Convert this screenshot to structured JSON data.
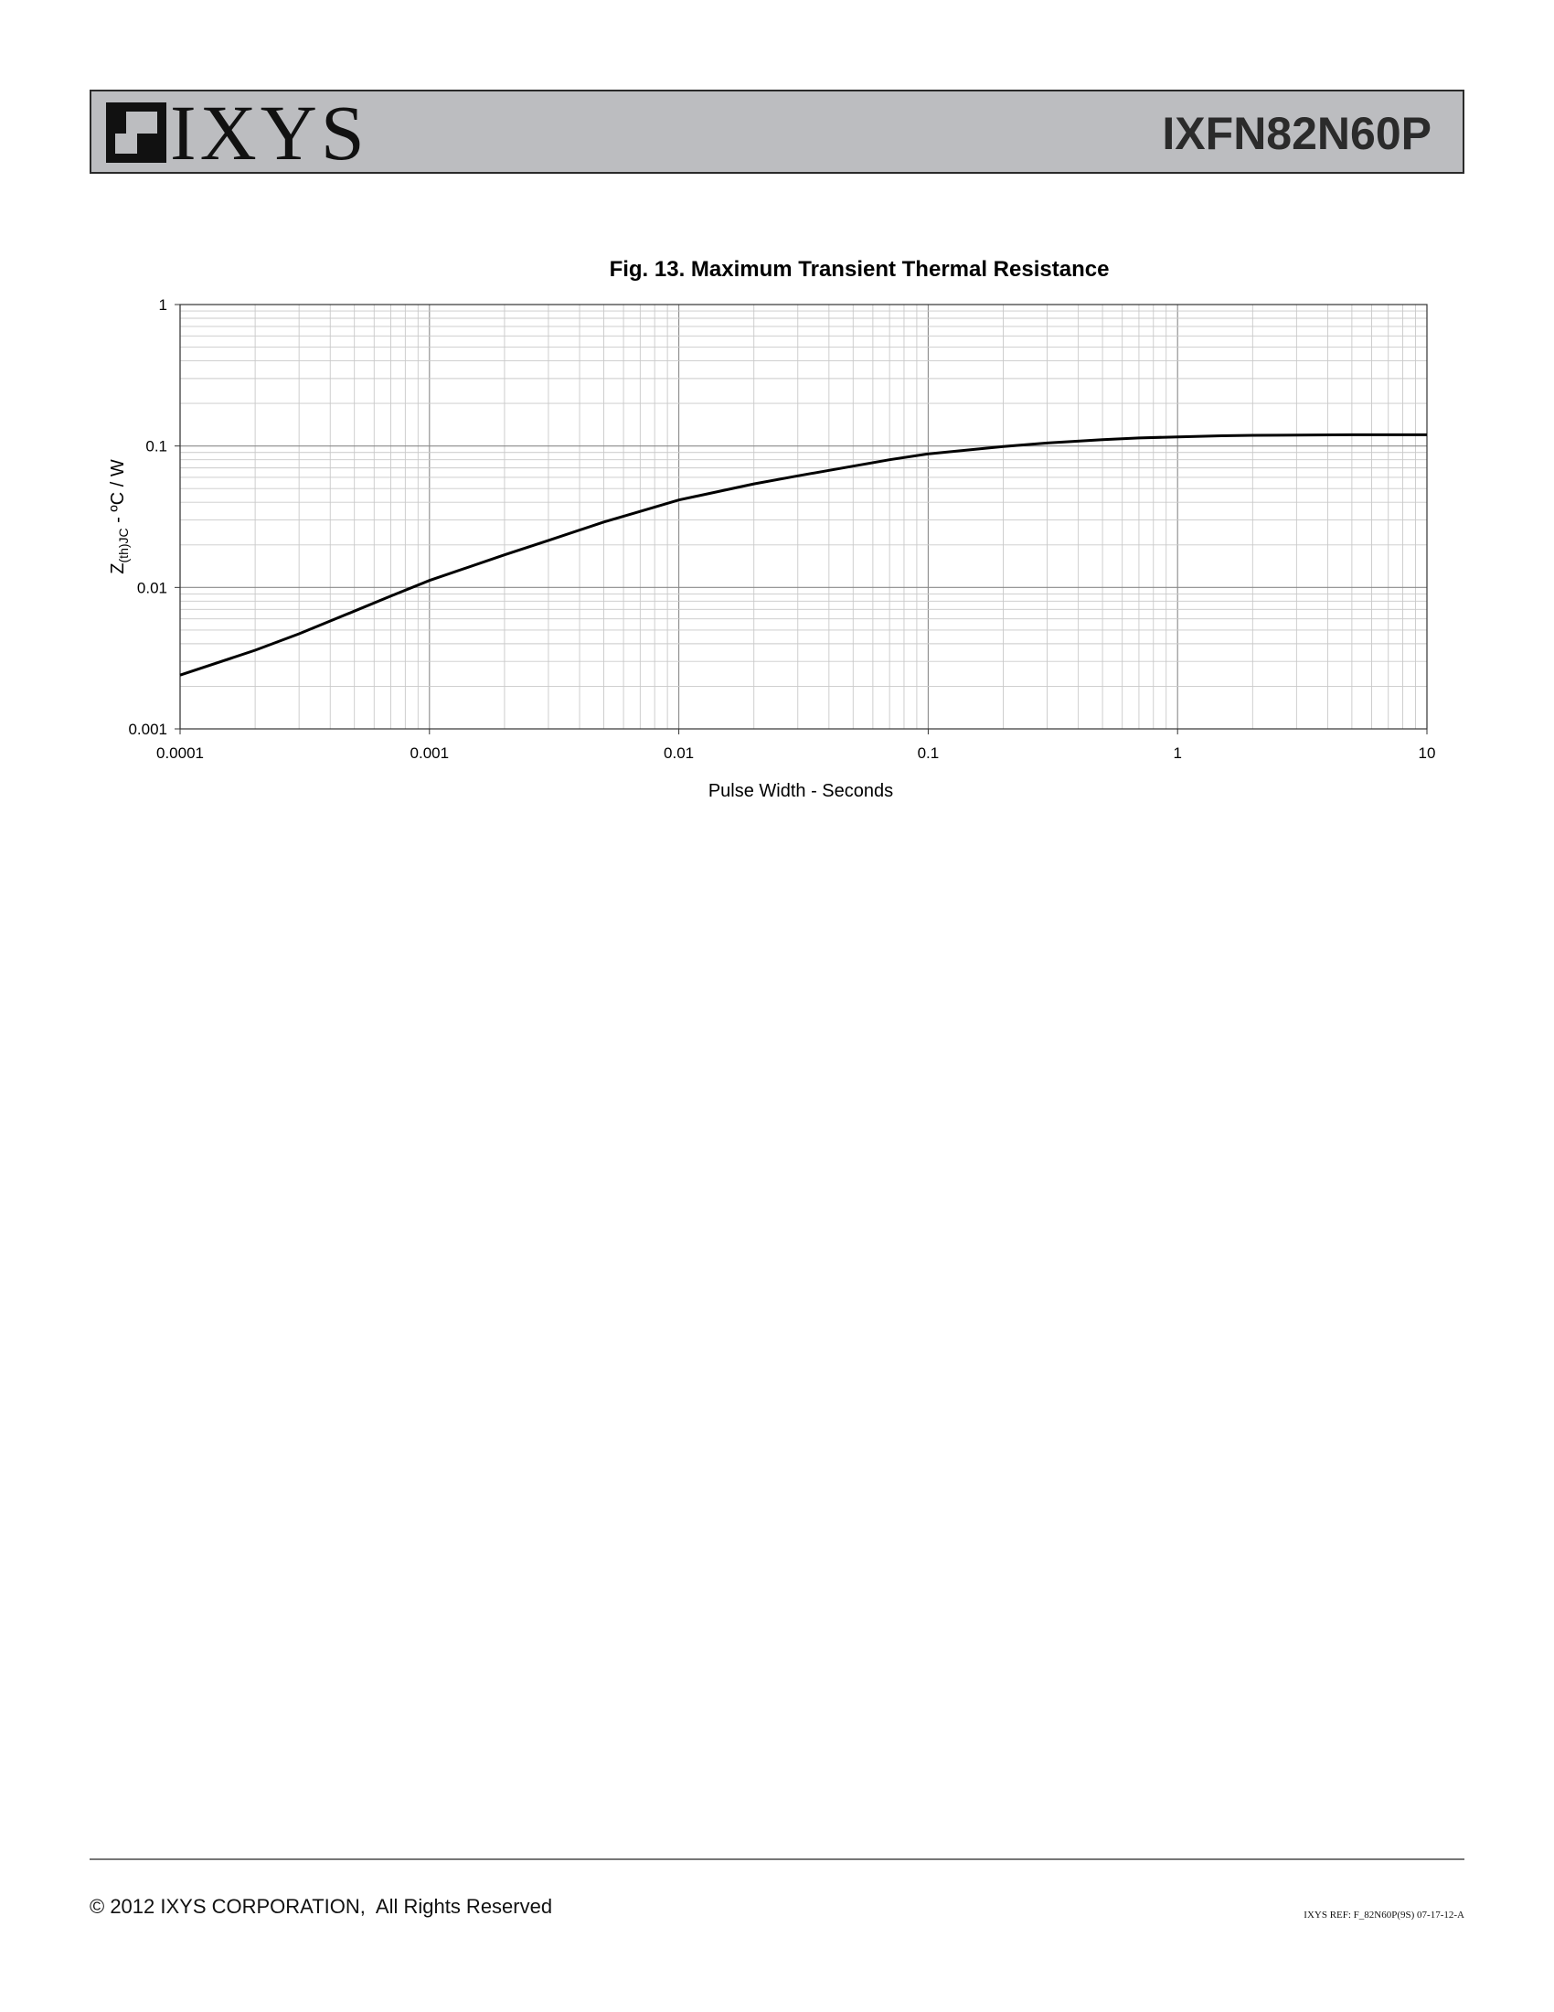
{
  "header": {
    "logo_text": "IXYS",
    "part_number": "IXFN82N60P"
  },
  "chart_data": {
    "type": "line",
    "title": "Fig. 13. Maximum Transient Thermal Resistance",
    "xlabel": "Pulse Width - Seconds",
    "ylabel_main": "Z",
    "ylabel_sub": "(th)JC",
    "ylabel_rest": " - ºC / W",
    "xscale": "log",
    "yscale": "log",
    "xlim": [
      0.0001,
      10
    ],
    "ylim": [
      0.001,
      1
    ],
    "grid": true,
    "x_ticks": [
      {
        "value": 0.0001,
        "label": "0.0001"
      },
      {
        "value": 0.001,
        "label": "0.001"
      },
      {
        "value": 0.01,
        "label": "0.01"
      },
      {
        "value": 0.1,
        "label": "0.1"
      },
      {
        "value": 1,
        "label": "1"
      },
      {
        "value": 10,
        "label": "10"
      }
    ],
    "y_ticks": [
      {
        "value": 0.001,
        "label": "0.001"
      },
      {
        "value": 0.01,
        "label": "0.01"
      },
      {
        "value": 0.1,
        "label": "0.1"
      },
      {
        "value": 1,
        "label": "1"
      }
    ],
    "series": [
      {
        "color": "#000000",
        "points": [
          [
            0.0001,
            0.0024
          ],
          [
            0.0002,
            0.0036
          ],
          [
            0.0003,
            0.0047
          ],
          [
            0.0005,
            0.0068
          ],
          [
            0.0007,
            0.0087
          ],
          [
            0.001,
            0.0112
          ],
          [
            0.002,
            0.017
          ],
          [
            0.003,
            0.0215
          ],
          [
            0.005,
            0.029
          ],
          [
            0.007,
            0.0345
          ],
          [
            0.01,
            0.0415
          ],
          [
            0.02,
            0.054
          ],
          [
            0.03,
            0.0615
          ],
          [
            0.05,
            0.072
          ],
          [
            0.07,
            0.08
          ],
          [
            0.1,
            0.088
          ],
          [
            0.2,
            0.099
          ],
          [
            0.3,
            0.105
          ],
          [
            0.5,
            0.111
          ],
          [
            0.7,
            0.114
          ],
          [
            1,
            0.116
          ],
          [
            1.5,
            0.118
          ],
          [
            2,
            0.119
          ],
          [
            3,
            0.1195
          ],
          [
            5,
            0.12
          ],
          [
            10,
            0.12
          ]
        ]
      }
    ]
  },
  "footer": {
    "copyright": "© 2012 IXYS CORPORATION,  All Rights Reserved",
    "ref": "IXYS REF: F_82N60P(9S) 07-17-12-A"
  }
}
